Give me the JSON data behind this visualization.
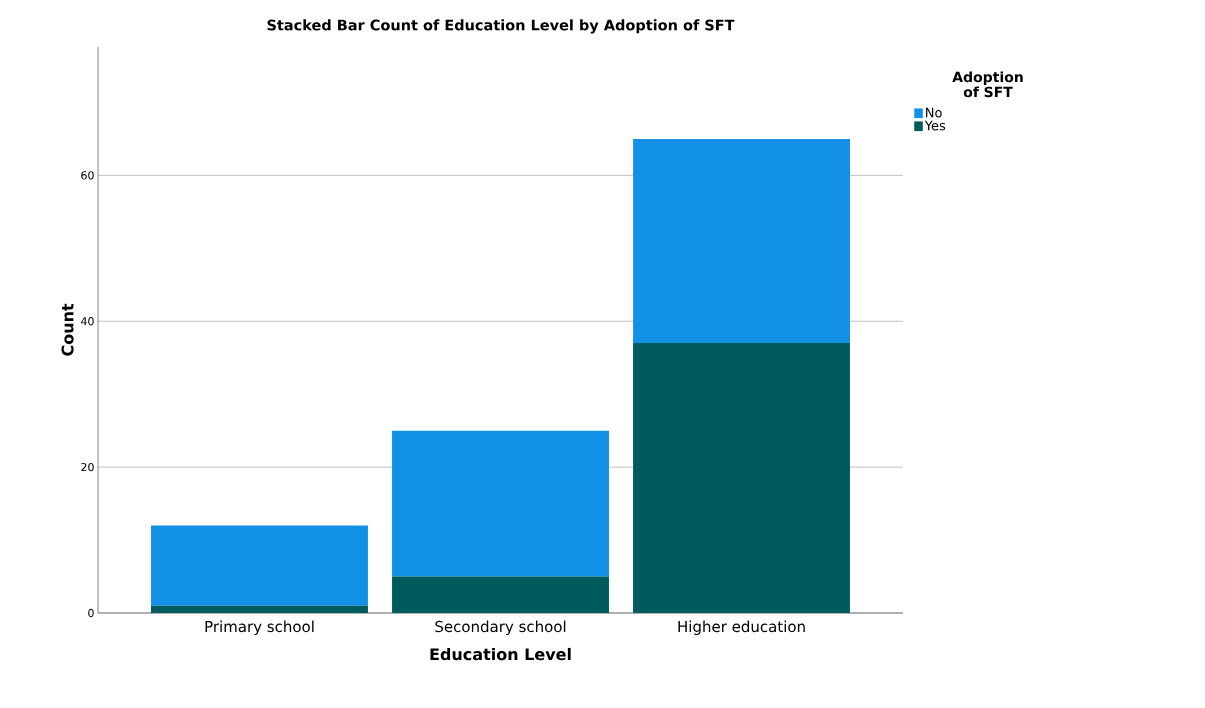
{
  "chart_data": {
    "type": "bar",
    "title": "Stacked Bar Count of Education Level by Adoption of SFT",
    "xlabel": "Education Level",
    "ylabel": "Count",
    "legend_title": "Adoption of SFT",
    "categories": [
      "Primary school",
      "Secondary school",
      "Higher education"
    ],
    "series": [
      {
        "name": "Yes",
        "color": "#005c5c",
        "values": [
          1,
          5,
          37
        ]
      },
      {
        "name": "No",
        "color": "#1290e6",
        "values": [
          11,
          20,
          28
        ]
      }
    ],
    "stacked": true,
    "ylim": [
      0,
      77.6
    ],
    "yticks": [
      0,
      20,
      40,
      60
    ],
    "grid": "y",
    "legend": "top right"
  }
}
